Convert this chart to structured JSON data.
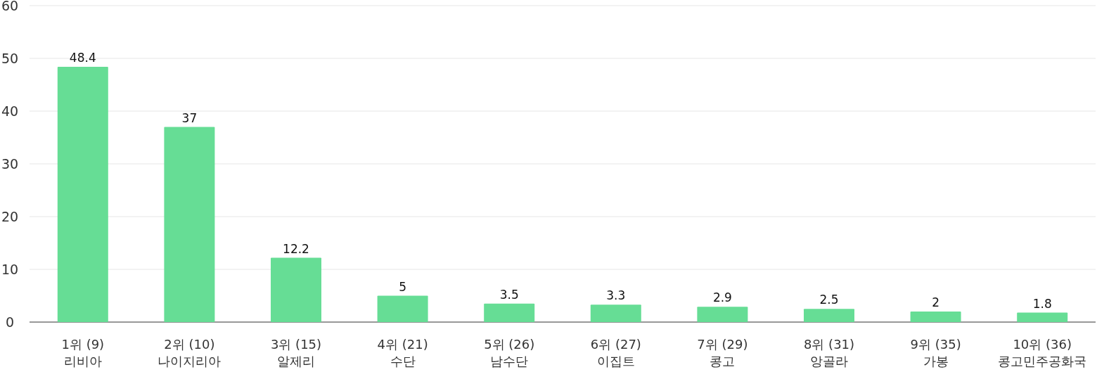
{
  "chart_data": {
    "type": "bar",
    "categories": [
      "1위 (9)\n리비아",
      "2위 (10)\n나이지리아",
      "3위 (15)\n알제리",
      "4위 (21)\n수단",
      "5위 (26)\n남수단",
      "6위 (27)\n이집트",
      "7위 (29)\n콩고",
      "8위 (31)\n앙골라",
      "9위 (35)\n가봉",
      "10위 (36)\n콩고민주공화국"
    ],
    "series": [
      {
        "color": "#66dd95",
        "values": [
          48.4,
          37,
          12.2,
          5,
          3.5,
          3.3,
          2.9,
          2.5,
          2,
          1.8
        ]
      }
    ],
    "ylim": [
      0,
      60
    ],
    "yticks": [
      0,
      10,
      20,
      30,
      40,
      50,
      60
    ],
    "grid": "y",
    "data_labels": true
  }
}
